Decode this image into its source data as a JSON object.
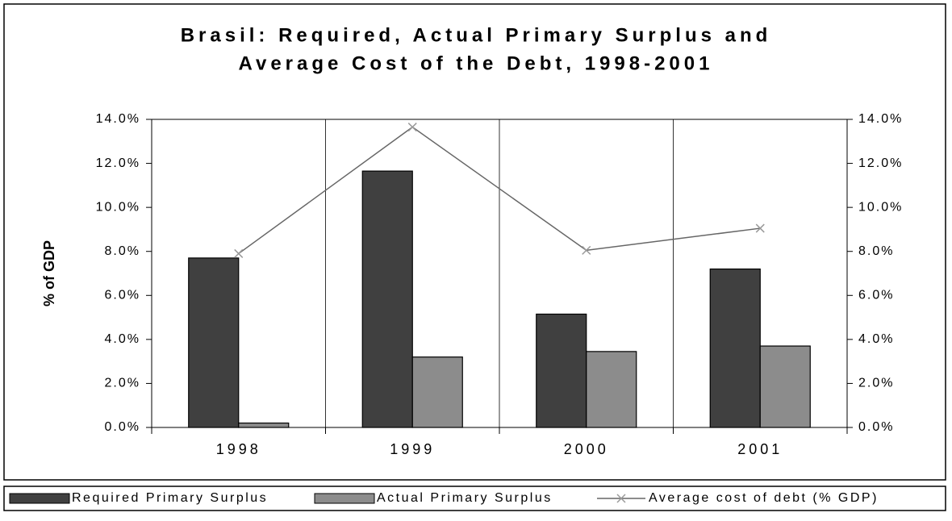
{
  "chart_data": {
    "type": "bar",
    "title": [
      "Brasil: Required, Actual Primary Surplus and",
      "Average Cost of the Debt, 1998-2001"
    ],
    "y_label": "% of GDP",
    "categories": [
      "1998",
      "1999",
      "2000",
      "2001"
    ],
    "series": [
      {
        "name": "Required Primary Surplus",
        "type": "bar",
        "color": "#404040",
        "values": [
          7.7,
          11.65,
          5.15,
          7.2
        ]
      },
      {
        "name": "Actual Primary Surplus",
        "type": "bar",
        "color": "#8c8c8c",
        "values": [
          0.2,
          3.2,
          3.45,
          3.7
        ]
      },
      {
        "name": "Average cost of debt (% GDP)",
        "type": "line",
        "axis": "y2",
        "color": "#666666",
        "values": [
          7.9,
          13.65,
          8.05,
          9.05
        ]
      }
    ],
    "ylim": [
      0,
      14
    ],
    "yticks": [
      {
        "value": 0,
        "label": "0.0%"
      },
      {
        "value": 2,
        "label": "2.0%"
      },
      {
        "value": 4,
        "label": "4.0%"
      },
      {
        "value": 6,
        "label": "6.0%"
      },
      {
        "value": 8,
        "label": "8.0%"
      },
      {
        "value": 10,
        "label": "10.0%"
      },
      {
        "value": 12,
        "label": "12.0%"
      },
      {
        "value": 14,
        "label": "14.0%"
      }
    ],
    "y2lim": [
      0,
      14
    ],
    "y2ticks": [
      {
        "value": 0,
        "label": "0.0%"
      },
      {
        "value": 2,
        "label": "2.0%"
      },
      {
        "value": 4,
        "label": "4.0%"
      },
      {
        "value": 6,
        "label": "6.0%"
      },
      {
        "value": 8,
        "label": "8.0%"
      },
      {
        "value": 10,
        "label": "10.0%"
      },
      {
        "value": 12,
        "label": "12.0%"
      },
      {
        "value": 14,
        "label": "14.0%"
      }
    ],
    "legend": "bottom"
  }
}
